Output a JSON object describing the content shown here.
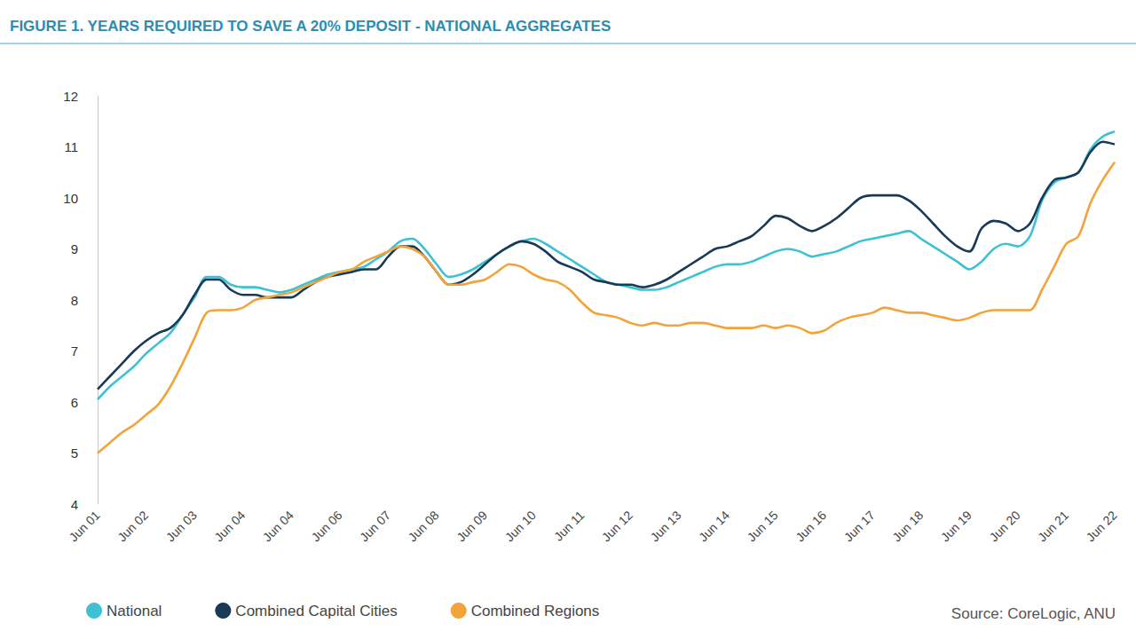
{
  "chart_data": {
    "type": "line",
    "title": "FIGURE 1. YEARS REQUIRED TO SAVE A 20% DEPOSIT - NATIONAL AGGREGATES",
    "source": "Source: CoreLogic, ANU",
    "categories": [
      "Jun 01",
      null,
      null,
      null,
      "Jun 02",
      null,
      null,
      null,
      "Jun 03",
      null,
      null,
      null,
      "Jun 04",
      null,
      null,
      null,
      "Jun 04",
      null,
      null,
      null,
      "Jun 06",
      null,
      null,
      null,
      "Jun 07",
      null,
      null,
      null,
      "Jun 08",
      null,
      null,
      null,
      "Jun 09",
      null,
      null,
      null,
      "Jun 10",
      null,
      null,
      null,
      "Jun 11",
      null,
      null,
      null,
      "Jun 12",
      null,
      null,
      null,
      "Jun 13",
      null,
      null,
      null,
      "Jun 14",
      null,
      null,
      null,
      "Jun 15",
      null,
      null,
      null,
      "Jun 16",
      null,
      null,
      null,
      "Jun 17",
      null,
      null,
      null,
      "Jun 18",
      null,
      null,
      null,
      "Jun 19",
      null,
      null,
      null,
      "Jun 20",
      null,
      null,
      null,
      "Jun 21",
      null,
      null,
      null,
      "Jun 22"
    ],
    "series": [
      {
        "name": "National",
        "color": "#3ec1d3",
        "values": [
          6.05,
          6.3,
          6.5,
          6.7,
          6.95,
          7.15,
          7.35,
          7.7,
          8.05,
          8.45,
          8.45,
          8.3,
          8.25,
          8.25,
          8.2,
          8.15,
          8.2,
          8.3,
          8.4,
          8.5,
          8.55,
          8.6,
          8.65,
          8.8,
          8.95,
          9.15,
          9.2,
          9.0,
          8.7,
          8.45,
          8.5,
          8.6,
          8.75,
          8.9,
          9.05,
          9.15,
          9.2,
          9.1,
          8.95,
          8.8,
          8.65,
          8.5,
          8.35,
          8.3,
          8.25,
          8.2,
          8.2,
          8.25,
          8.35,
          8.45,
          8.55,
          8.65,
          8.7,
          8.7,
          8.75,
          8.85,
          8.95,
          9.0,
          8.95,
          8.85,
          8.9,
          8.95,
          9.05,
          9.15,
          9.2,
          9.25,
          9.3,
          9.35,
          9.2,
          9.05,
          8.9,
          8.75,
          8.6,
          8.75,
          9.0,
          9.1,
          9.05,
          9.25,
          9.95,
          10.3,
          10.4,
          10.5,
          10.95,
          11.2,
          11.3
        ]
      },
      {
        "name": "Combined Capital Cities",
        "color": "#183a56",
        "values": [
          6.25,
          6.5,
          6.75,
          7.0,
          7.2,
          7.35,
          7.45,
          7.7,
          8.1,
          8.4,
          8.4,
          8.2,
          8.1,
          8.1,
          8.05,
          8.05,
          8.05,
          8.2,
          8.35,
          8.45,
          8.5,
          8.55,
          8.6,
          8.6,
          8.85,
          9.05,
          9.05,
          8.85,
          8.55,
          8.3,
          8.35,
          8.5,
          8.7,
          8.9,
          9.05,
          9.15,
          9.1,
          8.95,
          8.75,
          8.65,
          8.55,
          8.4,
          8.35,
          8.3,
          8.3,
          8.25,
          8.3,
          8.4,
          8.55,
          8.7,
          8.85,
          9.0,
          9.05,
          9.15,
          9.25,
          9.45,
          9.65,
          9.6,
          9.45,
          9.35,
          9.45,
          9.6,
          9.8,
          10.0,
          10.05,
          10.05,
          10.05,
          9.95,
          9.75,
          9.5,
          9.25,
          9.05,
          8.95,
          9.4,
          9.55,
          9.5,
          9.35,
          9.5,
          10.0,
          10.35,
          10.4,
          10.5,
          10.9,
          11.1,
          11.05
        ]
      },
      {
        "name": "Combined Regions",
        "color": "#f2a33a",
        "values": [
          5.0,
          5.2,
          5.4,
          5.55,
          5.75,
          5.95,
          6.3,
          6.75,
          7.25,
          7.75,
          7.8,
          7.8,
          7.85,
          8.0,
          8.05,
          8.1,
          8.15,
          8.25,
          8.35,
          8.45,
          8.55,
          8.6,
          8.75,
          8.85,
          8.95,
          9.05,
          9.0,
          8.85,
          8.55,
          8.3,
          8.3,
          8.35,
          8.4,
          8.55,
          8.7,
          8.65,
          8.5,
          8.4,
          8.35,
          8.2,
          7.95,
          7.75,
          7.7,
          7.65,
          7.55,
          7.5,
          7.55,
          7.5,
          7.5,
          7.55,
          7.55,
          7.5,
          7.45,
          7.45,
          7.45,
          7.5,
          7.45,
          7.5,
          7.45,
          7.35,
          7.4,
          7.55,
          7.65,
          7.7,
          7.75,
          7.85,
          7.8,
          7.75,
          7.75,
          7.7,
          7.65,
          7.6,
          7.65,
          7.75,
          7.8,
          7.8,
          7.8,
          7.8,
          8.2,
          8.65,
          9.1,
          9.25,
          9.9,
          10.35,
          10.7
        ]
      }
    ],
    "ylim": [
      4,
      12
    ],
    "yticks": [
      4,
      5,
      6,
      7,
      8,
      9,
      10,
      11,
      12
    ],
    "grid": false,
    "legend": "bottom"
  }
}
